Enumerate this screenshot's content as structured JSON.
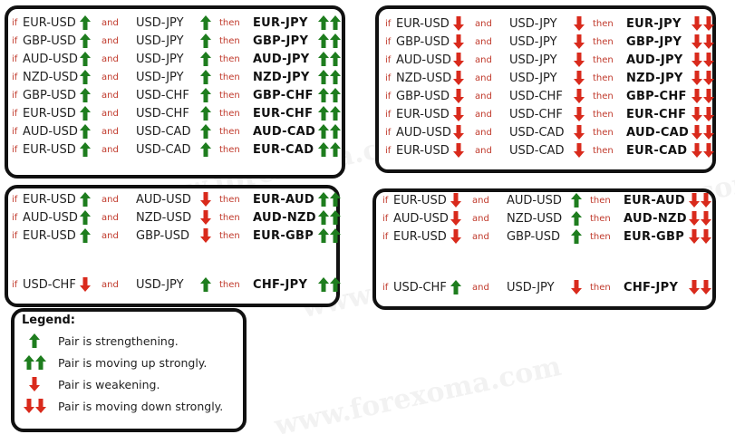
{
  "keywords": {
    "if": "if",
    "and": "and",
    "then": "then"
  },
  "colors": {
    "up": "#1e7d1e",
    "down": "#d92a1c",
    "keyword": "#c0392b",
    "border": "#111111"
  },
  "panels": {
    "top_left": {
      "rows": [
        {
          "p1": "EUR-USD",
          "d1": "up",
          "p2": "USD-JPY",
          "d2": "up",
          "result": "EUR-JPY",
          "rd": "up-strong"
        },
        {
          "p1": "GBP-USD",
          "d1": "up",
          "p2": "USD-JPY",
          "d2": "up",
          "result": "GBP-JPY",
          "rd": "up-strong"
        },
        {
          "p1": "AUD-USD",
          "d1": "up",
          "p2": "USD-JPY",
          "d2": "up",
          "result": "AUD-JPY",
          "rd": "up-strong"
        },
        {
          "p1": "NZD-USD",
          "d1": "up",
          "p2": "USD-JPY",
          "d2": "up",
          "result": "NZD-JPY",
          "rd": "up-strong"
        },
        {
          "p1": "GBP-USD",
          "d1": "up",
          "p2": "USD-CHF",
          "d2": "up",
          "result": "GBP-CHF",
          "rd": "up-strong"
        },
        {
          "p1": "EUR-USD",
          "d1": "up",
          "p2": "USD-CHF",
          "d2": "up",
          "result": "EUR-CHF",
          "rd": "up-strong"
        },
        {
          "p1": "AUD-USD",
          "d1": "up",
          "p2": "USD-CAD",
          "d2": "up",
          "result": "AUD-CAD",
          "rd": "up-strong"
        },
        {
          "p1": "EUR-USD",
          "d1": "up",
          "p2": "USD-CAD",
          "d2": "up",
          "result": "EUR-CAD",
          "rd": "up-strong"
        }
      ]
    },
    "top_right": {
      "rows": [
        {
          "p1": "EUR-USD",
          "d1": "down",
          "p2": "USD-JPY",
          "d2": "down",
          "result": "EUR-JPY",
          "rd": "down-strong"
        },
        {
          "p1": "GBP-USD",
          "d1": "down",
          "p2": "USD-JPY",
          "d2": "down",
          "result": "GBP-JPY",
          "rd": "down-strong"
        },
        {
          "p1": "AUD-USD",
          "d1": "down",
          "p2": "USD-JPY",
          "d2": "down",
          "result": "AUD-JPY",
          "rd": "down-strong"
        },
        {
          "p1": "NZD-USD",
          "d1": "down",
          "p2": "USD-JPY",
          "d2": "down",
          "result": "NZD-JPY",
          "rd": "down-strong"
        },
        {
          "p1": "GBP-USD",
          "d1": "down",
          "p2": "USD-CHF",
          "d2": "down",
          "result": "GBP-CHF",
          "rd": "down-strong"
        },
        {
          "p1": "EUR-USD",
          "d1": "down",
          "p2": "USD-CHF",
          "d2": "down",
          "result": "EUR-CHF",
          "rd": "down-strong"
        },
        {
          "p1": "AUD-USD",
          "d1": "down",
          "p2": "USD-CAD",
          "d2": "down",
          "result": "AUD-CAD",
          "rd": "down-strong"
        },
        {
          "p1": "EUR-USD",
          "d1": "down",
          "p2": "USD-CAD",
          "d2": "down",
          "result": "EUR-CAD",
          "rd": "down-strong"
        }
      ]
    },
    "mid_left": {
      "rows": [
        {
          "p1": "EUR-USD",
          "d1": "up",
          "p2": "AUD-USD",
          "d2": "down",
          "result": "EUR-AUD",
          "rd": "up-strong"
        },
        {
          "p1": "AUD-USD",
          "d1": "up",
          "p2": "NZD-USD",
          "d2": "down",
          "result": "AUD-NZD",
          "rd": "up-strong"
        },
        {
          "p1": "EUR-USD",
          "d1": "up",
          "p2": "GBP-USD",
          "d2": "down",
          "result": "EUR-GBP",
          "rd": "up-strong"
        },
        {
          "p1": "USD-CHF",
          "d1": "down",
          "p2": "USD-JPY",
          "d2": "up",
          "result": "CHF-JPY",
          "rd": "up-strong"
        }
      ]
    },
    "mid_right": {
      "rows": [
        {
          "p1": "EUR-USD",
          "d1": "down",
          "p2": "AUD-USD",
          "d2": "up",
          "result": "EUR-AUD",
          "rd": "down-strong"
        },
        {
          "p1": "AUD-USD",
          "d1": "down",
          "p2": "NZD-USD",
          "d2": "up",
          "result": "AUD-NZD",
          "rd": "down-strong"
        },
        {
          "p1": "EUR-USD",
          "d1": "down",
          "p2": "GBP-USD",
          "d2": "up",
          "result": "EUR-GBP",
          "rd": "down-strong"
        },
        {
          "p1": "USD-CHF",
          "d1": "up",
          "p2": "USD-JPY",
          "d2": "down",
          "result": "CHF-JPY",
          "rd": "down-strong"
        }
      ]
    }
  },
  "legend": {
    "title": "Legend:",
    "items": [
      {
        "icon": "up",
        "text": "Pair is strengthening."
      },
      {
        "icon": "up-strong",
        "text": "Pair is moving up strongly."
      },
      {
        "icon": "down",
        "text": "Pair is weakening."
      },
      {
        "icon": "down-strong",
        "text": "Pair is moving down strongly."
      }
    ]
  },
  "watermark": "www.forexoma.com"
}
